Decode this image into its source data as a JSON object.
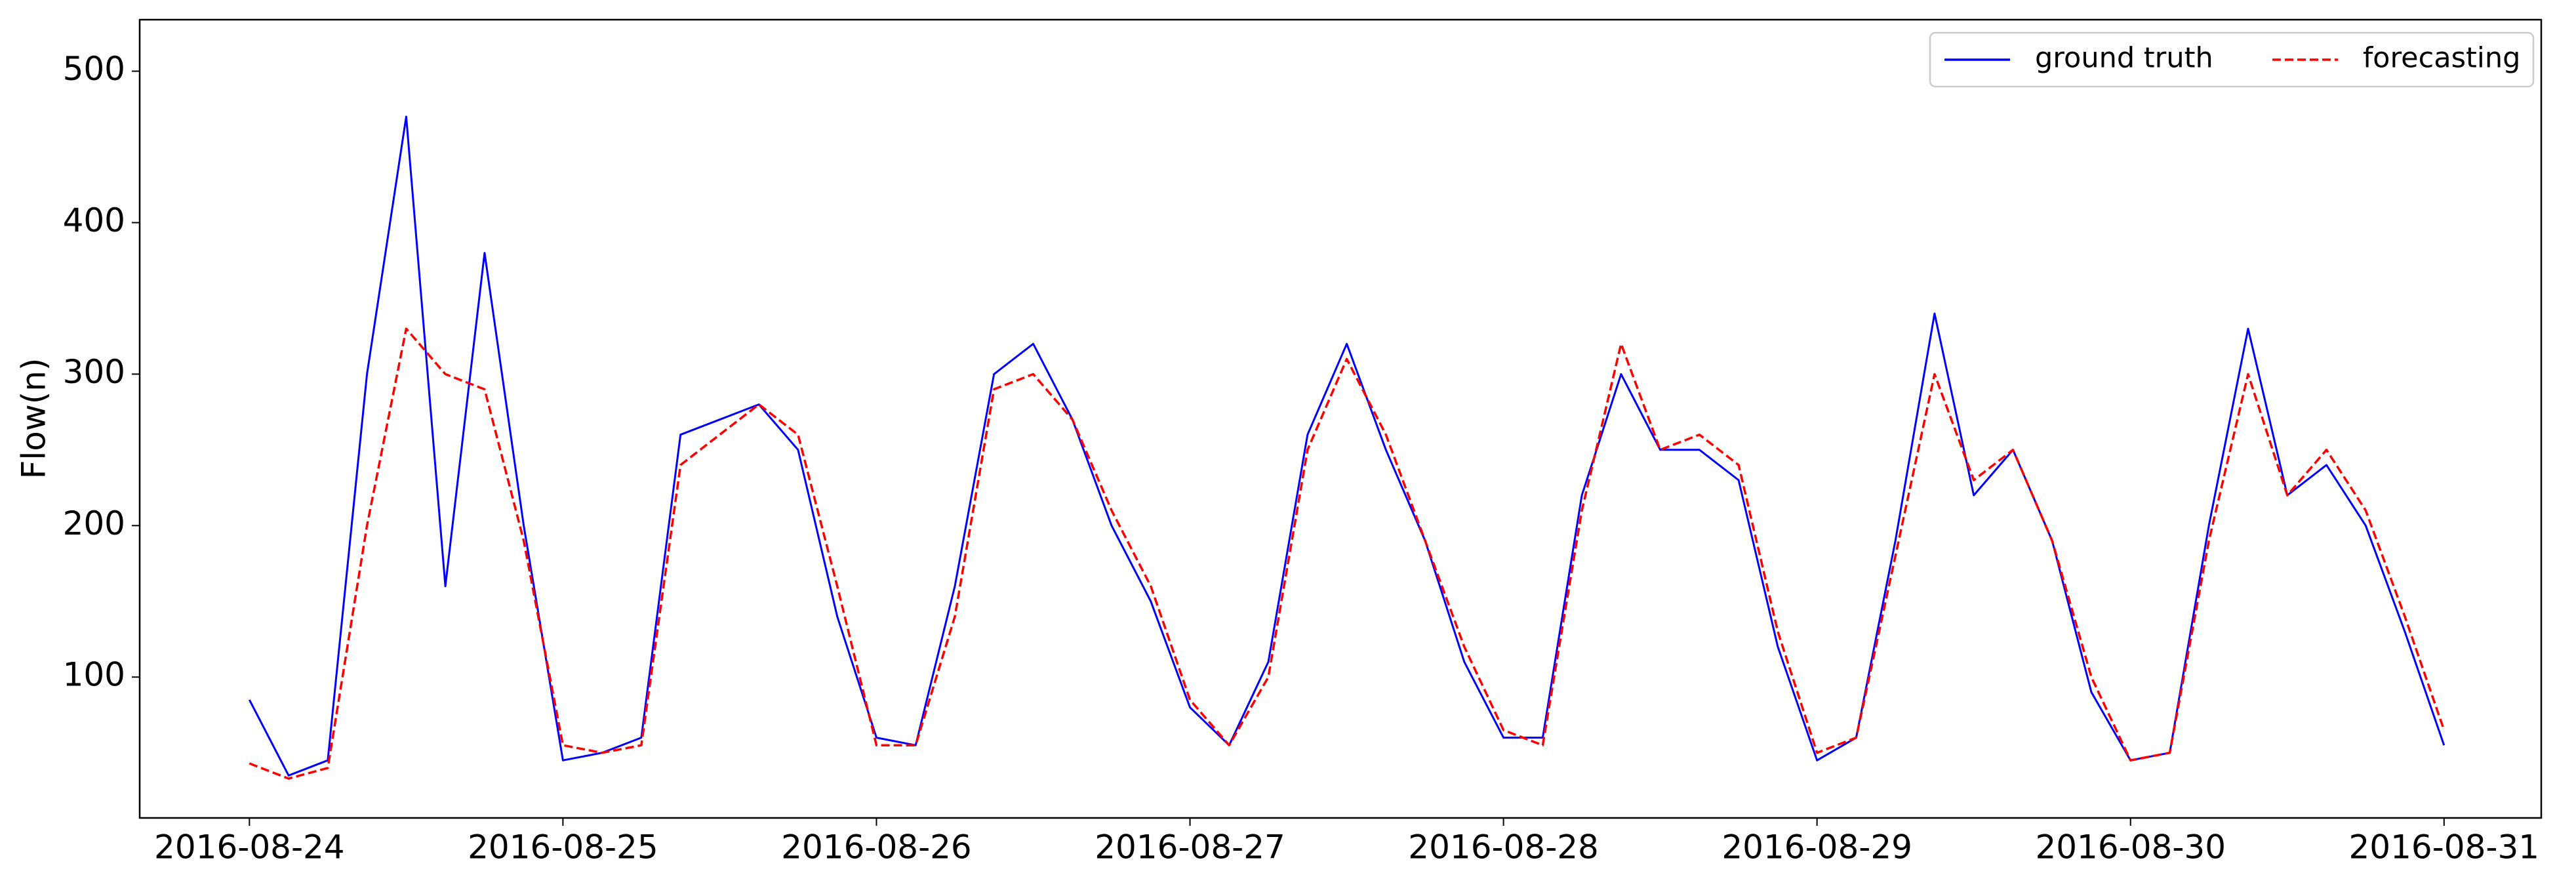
{
  "chart_data": {
    "type": "line",
    "ylabel": "Flow(n)",
    "x": [
      0,
      0.125,
      0.25,
      0.375,
      0.5,
      0.625,
      0.75,
      0.875,
      1,
      1.125,
      1.25,
      1.375,
      1.5,
      1.625,
      1.75,
      1.875,
      2,
      2.125,
      2.25,
      2.375,
      2.5,
      2.625,
      2.75,
      2.875,
      3,
      3.125,
      3.25,
      3.375,
      3.5,
      3.625,
      3.75,
      3.875,
      4,
      4.125,
      4.25,
      4.375,
      4.5,
      4.625,
      4.75,
      4.875,
      5,
      5.125,
      5.25,
      5.375,
      5.5,
      5.625,
      5.75,
      5.875,
      6,
      6.125,
      6.25,
      6.375,
      6.5,
      6.625,
      6.75,
      6.875,
      7
    ],
    "series": [
      {
        "name": "ground truth",
        "color": "#0000ff",
        "linestyle": "solid",
        "values": [
          85,
          35,
          45,
          300,
          470,
          160,
          380,
          200,
          45,
          50,
          60,
          260,
          270,
          280,
          250,
          140,
          60,
          55,
          160,
          300,
          320,
          270,
          200,
          150,
          80,
          55,
          110,
          260,
          320,
          250,
          190,
          110,
          60,
          60,
          220,
          300,
          250,
          250,
          230,
          120,
          45,
          60,
          190,
          340,
          220,
          250,
          190,
          90,
          45,
          50,
          200,
          330,
          220,
          240,
          200,
          130,
          55
        ]
      },
      {
        "name": "forecasting",
        "color": "#ff0000",
        "linestyle": "dashed",
        "values": [
          43,
          33,
          40,
          200,
          330,
          300,
          290,
          190,
          55,
          50,
          55,
          240,
          260,
          280,
          260,
          160,
          55,
          55,
          140,
          290,
          300,
          270,
          210,
          160,
          85,
          55,
          100,
          250,
          310,
          260,
          190,
          120,
          65,
          55,
          210,
          320,
          250,
          260,
          240,
          130,
          50,
          60,
          180,
          300,
          230,
          250,
          190,
          100,
          45,
          50,
          190,
          300,
          220,
          250,
          210,
          140,
          65
        ]
      }
    ],
    "xlim": [
      -0.35,
      7.31
    ],
    "xticks": [
      {
        "value": 0,
        "label": "2016-08-24"
      },
      {
        "value": 1,
        "label": "2016-08-25"
      },
      {
        "value": 2,
        "label": "2016-08-26"
      },
      {
        "value": 3,
        "label": "2016-08-27"
      },
      {
        "value": 4,
        "label": "2016-08-28"
      },
      {
        "value": 5,
        "label": "2016-08-29"
      },
      {
        "value": 6,
        "label": "2016-08-30"
      },
      {
        "value": 7,
        "label": "2016-08-31"
      }
    ],
    "ylim": [
      7,
      534
    ],
    "yticks": [
      100,
      200,
      300,
      400,
      500
    ],
    "grid": false,
    "legend": "upper right",
    "legend_columns": 2
  }
}
